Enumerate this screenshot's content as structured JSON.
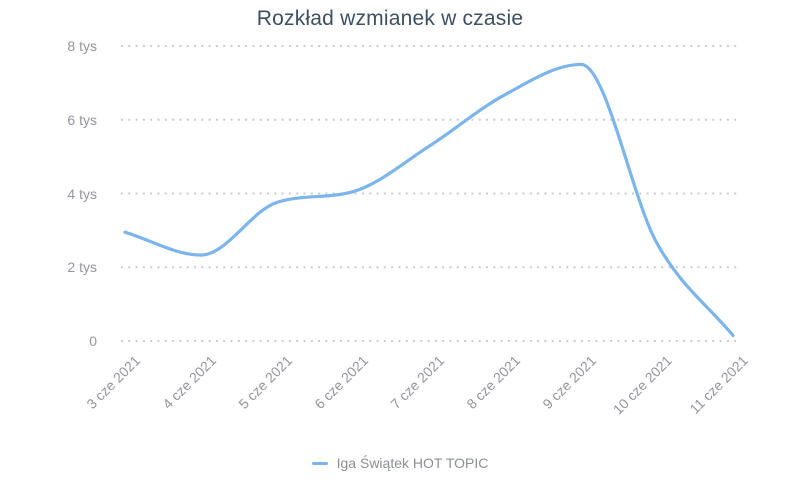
{
  "chart_data": {
    "type": "line",
    "title": "Rozkład wzmianek w czasie",
    "xlabel": "",
    "ylabel": "",
    "categories": [
      "3 cze 2021",
      "4 cze 2021",
      "5 cze 2021",
      "6 cze 2021",
      "7 cze 2021",
      "8 cze 2021",
      "9 cze 2021",
      "10 cze 2021",
      "11 cze 2021"
    ],
    "series": [
      {
        "name": "Iga Świątek HOT TOPIC",
        "values": [
          2950,
          2330,
          3760,
          4050,
          5280,
          6680,
          7500,
          2650,
          150
        ]
      }
    ],
    "ylim": [
      0,
      8000
    ],
    "y_ticks": [
      {
        "value": 8000,
        "label": "8 tys"
      },
      {
        "value": 6000,
        "label": "6 tys"
      },
      {
        "value": 4000,
        "label": "4 tys"
      },
      {
        "value": 2000,
        "label": "2 tys"
      },
      {
        "value": 0,
        "label": "0"
      }
    ],
    "grid": "horizontal-dotted",
    "legend_position": "bottom-center",
    "line_color": "#7cb5ec",
    "colors": {
      "title": "#3d4f63",
      "axis_labels": "#94959f",
      "grid": "#cccccc",
      "legend_text": "#8b8f99",
      "background": "#ffffff"
    }
  }
}
